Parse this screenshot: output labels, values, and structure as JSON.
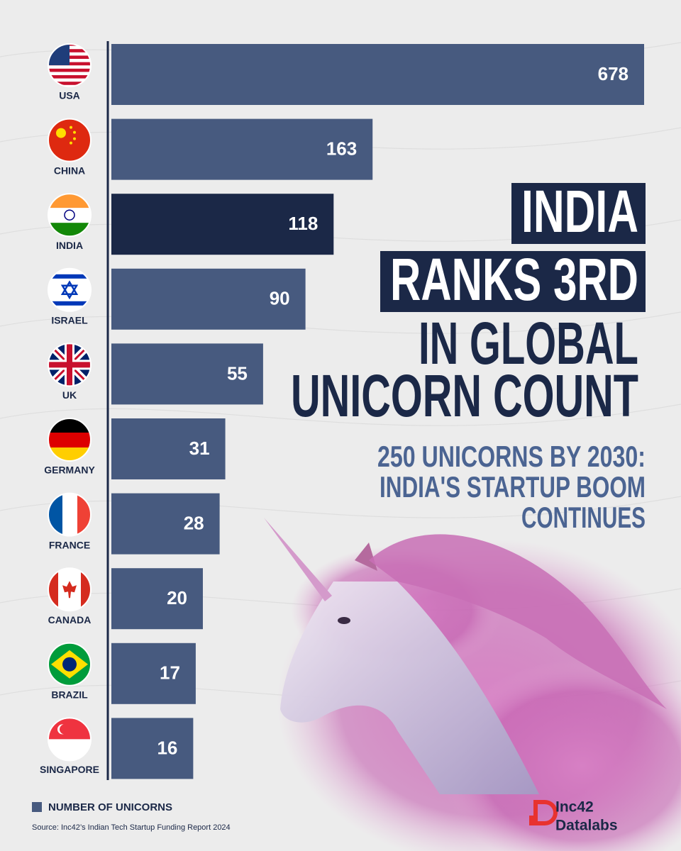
{
  "chart_data": {
    "type": "bar",
    "orientation": "horizontal",
    "scale": "sqrt",
    "title": [
      "INDIA",
      "RANKS 3RD",
      "IN GLOBAL",
      "UNICORN COUNT"
    ],
    "subtitle": [
      "250 UNICORNS BY 2030:",
      "INDIA'S STARTUP BOOM",
      "CONTINUES"
    ],
    "categories": [
      "USA",
      "CHINA",
      "INDIA",
      "ISRAEL",
      "UK",
      "GERMANY",
      "FRANCE",
      "CANADA",
      "BRAZIL",
      "SINGAPORE"
    ],
    "series": [
      {
        "name": "NUMBER OF UNICORNS",
        "color": "#475a7f",
        "values": [
          678,
          163,
          118,
          90,
          55,
          31,
          28,
          20,
          17,
          16
        ],
        "colors": [
          "#475a7f",
          "#475a7f",
          "#1b2847",
          "#475a7f",
          "#475a7f",
          "#475a7f",
          "#475a7f",
          "#475a7f",
          "#475a7f",
          "#475a7f"
        ]
      }
    ],
    "source": "Source: Inc42’s Indian Tech Startup Funding Report 2024"
  },
  "logo": {
    "name": "Inc42",
    "subtitle": "Datalabs"
  }
}
